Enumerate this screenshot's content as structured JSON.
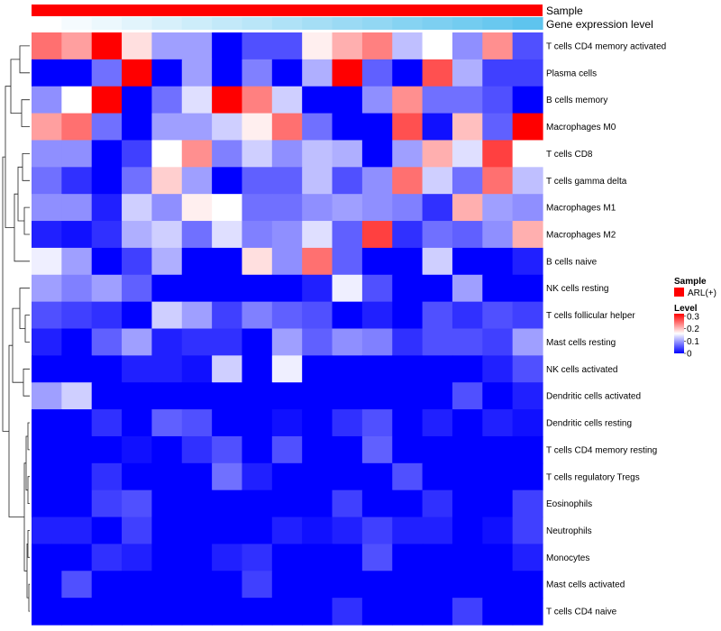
{
  "chart_data": {
    "type": "heatmap",
    "title": "",
    "rows": [
      "T cells CD4 memory activated",
      "Plasma cells",
      "B cells memory",
      "Macrophages M0",
      "T cells CD8",
      "T cells gamma delta",
      "Macrophages M1",
      "Macrophages M2",
      "B cells naive",
      "NK cells resting",
      "T cells follicular helper",
      "Mast cells resting",
      "NK cells activated",
      "Dendritic cells activated",
      "Dendritic cells resting",
      "T cells CD4 memory resting",
      "T cells regulatory  Tregs",
      "Eosinophils",
      "Neutrophils",
      "Monocytes",
      "Mast cells activated",
      "T cells CD4 naive"
    ],
    "values": [
      [
        0.25,
        0.22,
        0.32,
        0.18,
        0.1,
        0.1,
        0.0,
        0.05,
        0.05,
        0.17,
        0.21,
        0.24,
        0.12,
        0.16,
        0.09,
        0.23,
        0.05
      ],
      [
        0.0,
        0.0,
        0.07,
        0.32,
        0.0,
        0.1,
        0.0,
        0.08,
        0.0,
        0.11,
        0.32,
        0.06,
        0.0,
        0.27,
        0.11,
        0.04,
        0.04
      ],
      [
        0.09,
        0.16,
        0.32,
        0.0,
        0.07,
        0.14,
        0.32,
        0.24,
        0.13,
        0.0,
        0.0,
        0.09,
        0.23,
        0.07,
        0.07,
        0.05,
        0.0
      ],
      [
        0.22,
        0.25,
        0.07,
        0.0,
        0.1,
        0.1,
        0.13,
        0.17,
        0.25,
        0.07,
        0.0,
        0.0,
        0.27,
        0.01,
        0.2,
        0.06,
        0.32
      ],
      [
        0.09,
        0.09,
        0.0,
        0.04,
        0.16,
        0.23,
        0.08,
        0.13,
        0.09,
        0.12,
        0.11,
        0.0,
        0.1,
        0.21,
        0.14,
        0.28,
        0.16
      ],
      [
        0.07,
        0.03,
        0.0,
        0.07,
        0.19,
        0.1,
        0.0,
        0.06,
        0.06,
        0.12,
        0.05,
        0.09,
        0.25,
        0.13,
        0.07,
        0.25,
        0.12
      ],
      [
        0.09,
        0.09,
        0.02,
        0.13,
        0.09,
        0.17,
        0.16,
        0.07,
        0.07,
        0.09,
        0.1,
        0.09,
        0.08,
        0.03,
        0.21,
        0.1,
        0.09
      ],
      [
        0.02,
        0.01,
        0.03,
        0.11,
        0.13,
        0.07,
        0.14,
        0.08,
        0.09,
        0.14,
        0.06,
        0.28,
        0.03,
        0.07,
        0.06,
        0.09,
        0.21
      ],
      [
        0.15,
        0.1,
        0.0,
        0.04,
        0.11,
        0.0,
        0.0,
        0.18,
        0.09,
        0.25,
        0.06,
        0.0,
        0.0,
        0.13,
        0.0,
        0.0,
        0.02
      ],
      [
        0.1,
        0.08,
        0.1,
        0.06,
        0.0,
        0.0,
        0.0,
        0.0,
        0.0,
        0.02,
        0.15,
        0.05,
        0.0,
        0.0,
        0.1,
        0.0,
        0.0
      ],
      [
        0.05,
        0.04,
        0.03,
        0.0,
        0.13,
        0.1,
        0.04,
        0.08,
        0.06,
        0.05,
        0.0,
        0.02,
        0.0,
        0.05,
        0.03,
        0.05,
        0.04
      ],
      [
        0.02,
        0.0,
        0.06,
        0.1,
        0.02,
        0.03,
        0.03,
        0.0,
        0.1,
        0.06,
        0.09,
        0.08,
        0.03,
        0.05,
        0.05,
        0.04,
        0.1
      ],
      [
        0.0,
        0.0,
        0.0,
        0.02,
        0.02,
        0.01,
        0.13,
        0.0,
        0.15,
        0.0,
        0.0,
        0.0,
        0.0,
        0.0,
        0.0,
        0.02,
        0.05
      ],
      [
        0.1,
        0.13,
        0.0,
        0.0,
        0.0,
        0.0,
        0.0,
        0.0,
        0.0,
        0.0,
        0.0,
        0.0,
        0.0,
        0.0,
        0.05,
        0.0,
        0.02
      ],
      [
        0.0,
        0.0,
        0.03,
        0.0,
        0.06,
        0.05,
        0.0,
        0.0,
        0.01,
        0.0,
        0.03,
        0.05,
        0.0,
        0.02,
        0.0,
        0.02,
        0.01
      ],
      [
        0.0,
        0.0,
        0.0,
        0.01,
        0.0,
        0.03,
        0.05,
        0.0,
        0.05,
        0.0,
        0.0,
        0.06,
        0.0,
        0.0,
        0.0,
        0.0,
        0.0
      ],
      [
        0.0,
        0.0,
        0.03,
        0.0,
        0.0,
        0.0,
        0.07,
        0.02,
        0.0,
        0.0,
        0.0,
        0.0,
        0.05,
        0.0,
        0.0,
        0.0,
        0.0
      ],
      [
        0.0,
        0.0,
        0.04,
        0.05,
        0.0,
        0.0,
        0.0,
        0.0,
        0.0,
        0.0,
        0.04,
        0.0,
        0.0,
        0.03,
        0.0,
        0.0,
        0.04
      ],
      [
        0.02,
        0.02,
        0.0,
        0.04,
        0.0,
        0.0,
        0.0,
        0.0,
        0.02,
        0.01,
        0.02,
        0.04,
        0.02,
        0.02,
        0.0,
        0.01,
        0.04
      ],
      [
        0.0,
        0.0,
        0.03,
        0.02,
        0.0,
        0.0,
        0.02,
        0.03,
        0.0,
        0.0,
        0.0,
        0.05,
        0.0,
        0.0,
        0.0,
        0.0,
        0.02
      ],
      [
        0.0,
        0.05,
        0.0,
        0.0,
        0.0,
        0.0,
        0.0,
        0.04,
        0.0,
        0.0,
        0.0,
        0.0,
        0.0,
        0.0,
        0.0,
        0.0,
        0.0
      ],
      [
        0.0,
        0.0,
        0.0,
        0.0,
        0.0,
        0.0,
        0.0,
        0.0,
        0.0,
        0.0,
        0.03,
        0.0,
        0.0,
        0.0,
        0.04,
        0.0,
        0.0
      ]
    ],
    "color_range": [
      0,
      0.32
    ],
    "colors": {
      "low": "#0000ff",
      "mid": "#ffffff",
      "high": "#ff0000"
    },
    "annotations": [
      {
        "label": "Sample",
        "color": "#ff0000"
      },
      {
        "label": "Gene expression level",
        "values": [
          0.0,
          0.06,
          0.12,
          0.18,
          0.25,
          0.31,
          0.37,
          0.43,
          0.5,
          0.56,
          0.62,
          0.68,
          0.75,
          0.81,
          0.87,
          0.93,
          1.0
        ],
        "colors": {
          "low": "#ffffff",
          "high": "#5ec4ee"
        }
      }
    ],
    "legend": {
      "sample_title": "Sample",
      "sample_item": "ARL(+)",
      "sample_color": "#ff0000",
      "level_title": "Level",
      "ticks": [
        "0.3",
        "0.2",
        "0.1",
        "0"
      ],
      "tick_values": [
        0.3,
        0.2,
        0.1,
        0
      ],
      "position": "right"
    },
    "dendrogram": "rows"
  }
}
